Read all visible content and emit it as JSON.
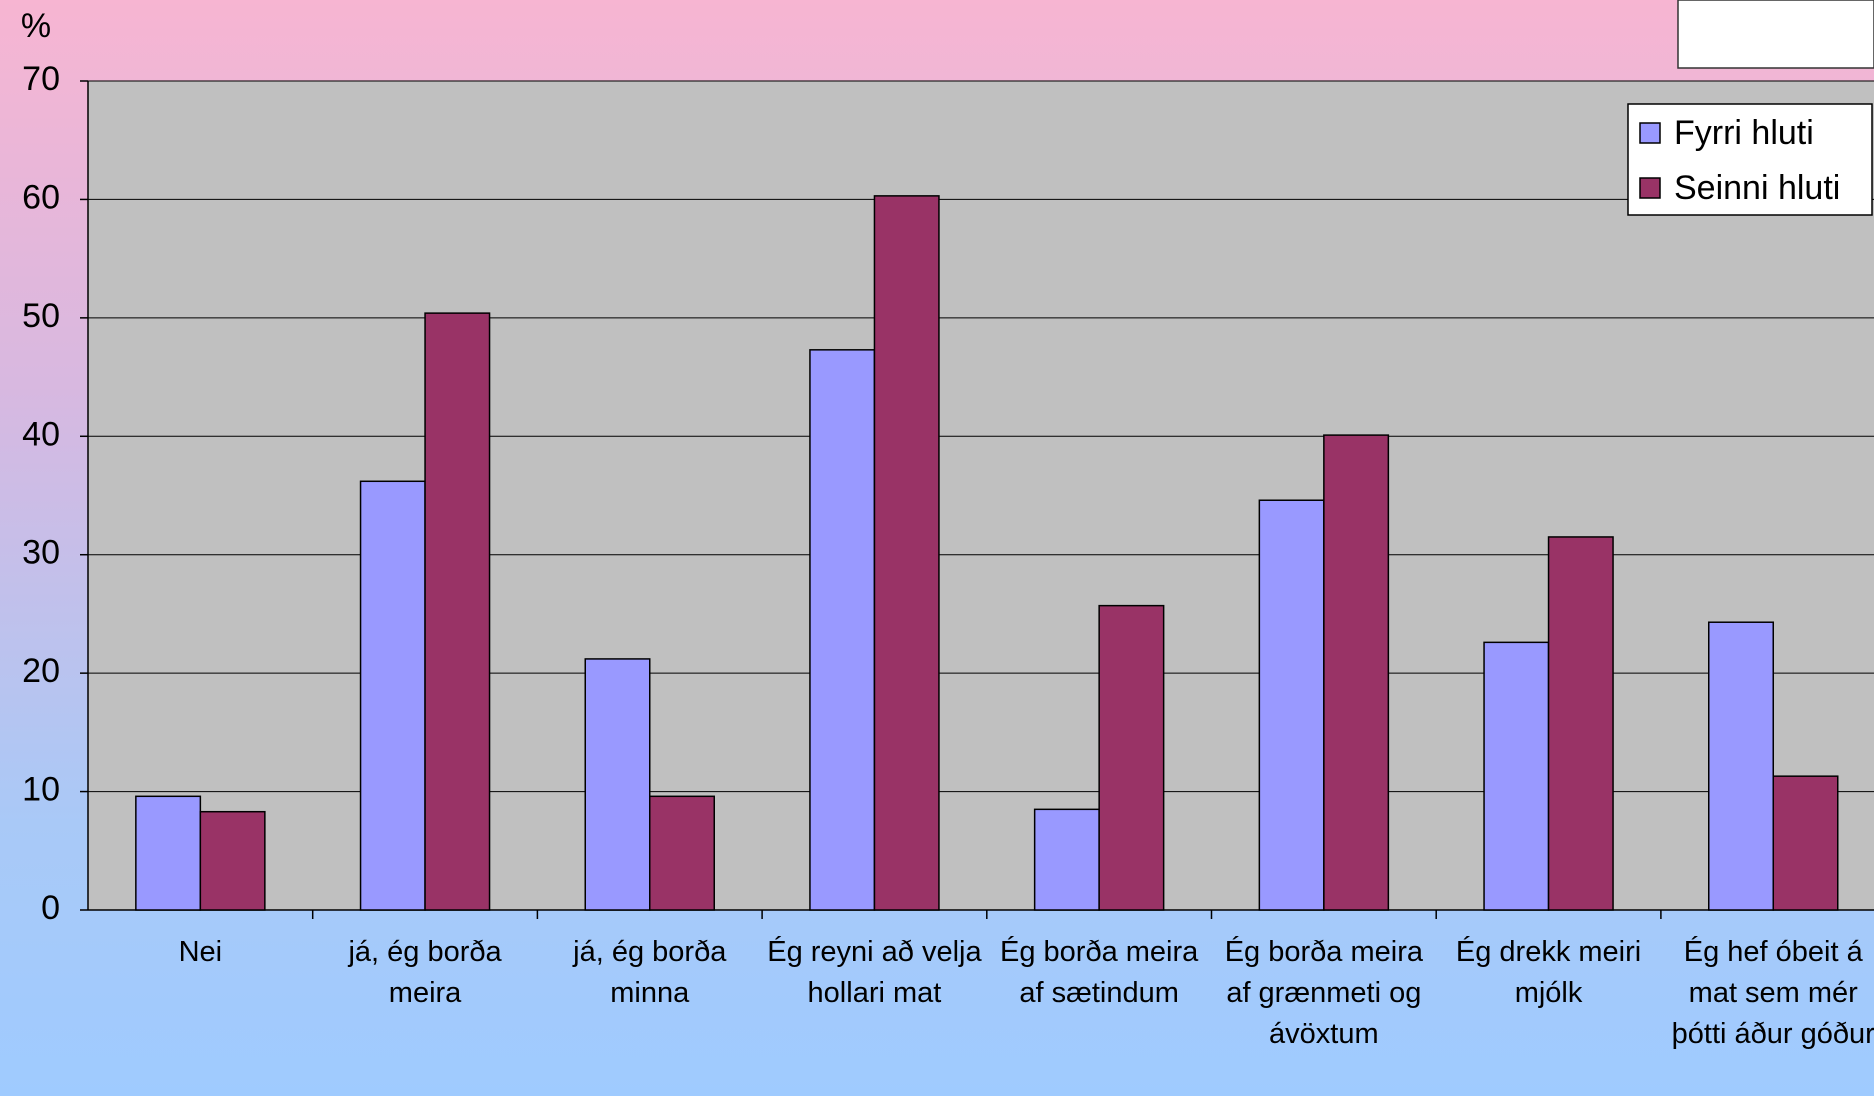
{
  "chart_data": {
    "type": "bar",
    "y_label": "%",
    "categories": [
      "Nei",
      "já, ég borða meira",
      "já, ég borða minna",
      "Ég reyni að velja hollari mat",
      "Ég borða meira af sætindum",
      "Ég borða meira af grænmeti og ávöxtum",
      "Ég drekk meiri mjólk",
      "Ég hef óbeit á mat sem mér þótti áður góður"
    ],
    "series": [
      {
        "name": "Fyrri hluti",
        "color": "#9999ff",
        "values": [
          9.6,
          36.2,
          21.2,
          47.3,
          8.5,
          34.6,
          22.6,
          24.3
        ]
      },
      {
        "name": "Seinni hluti",
        "color": "#993366",
        "values": [
          8.3,
          50.4,
          9.6,
          60.3,
          25.7,
          40.1,
          31.5,
          11.3
        ]
      }
    ],
    "ylim": [
      0,
      70
    ],
    "yticks": [
      0,
      10,
      20,
      30,
      40,
      50,
      60,
      70
    ],
    "grid": true,
    "legend": "top-right"
  }
}
